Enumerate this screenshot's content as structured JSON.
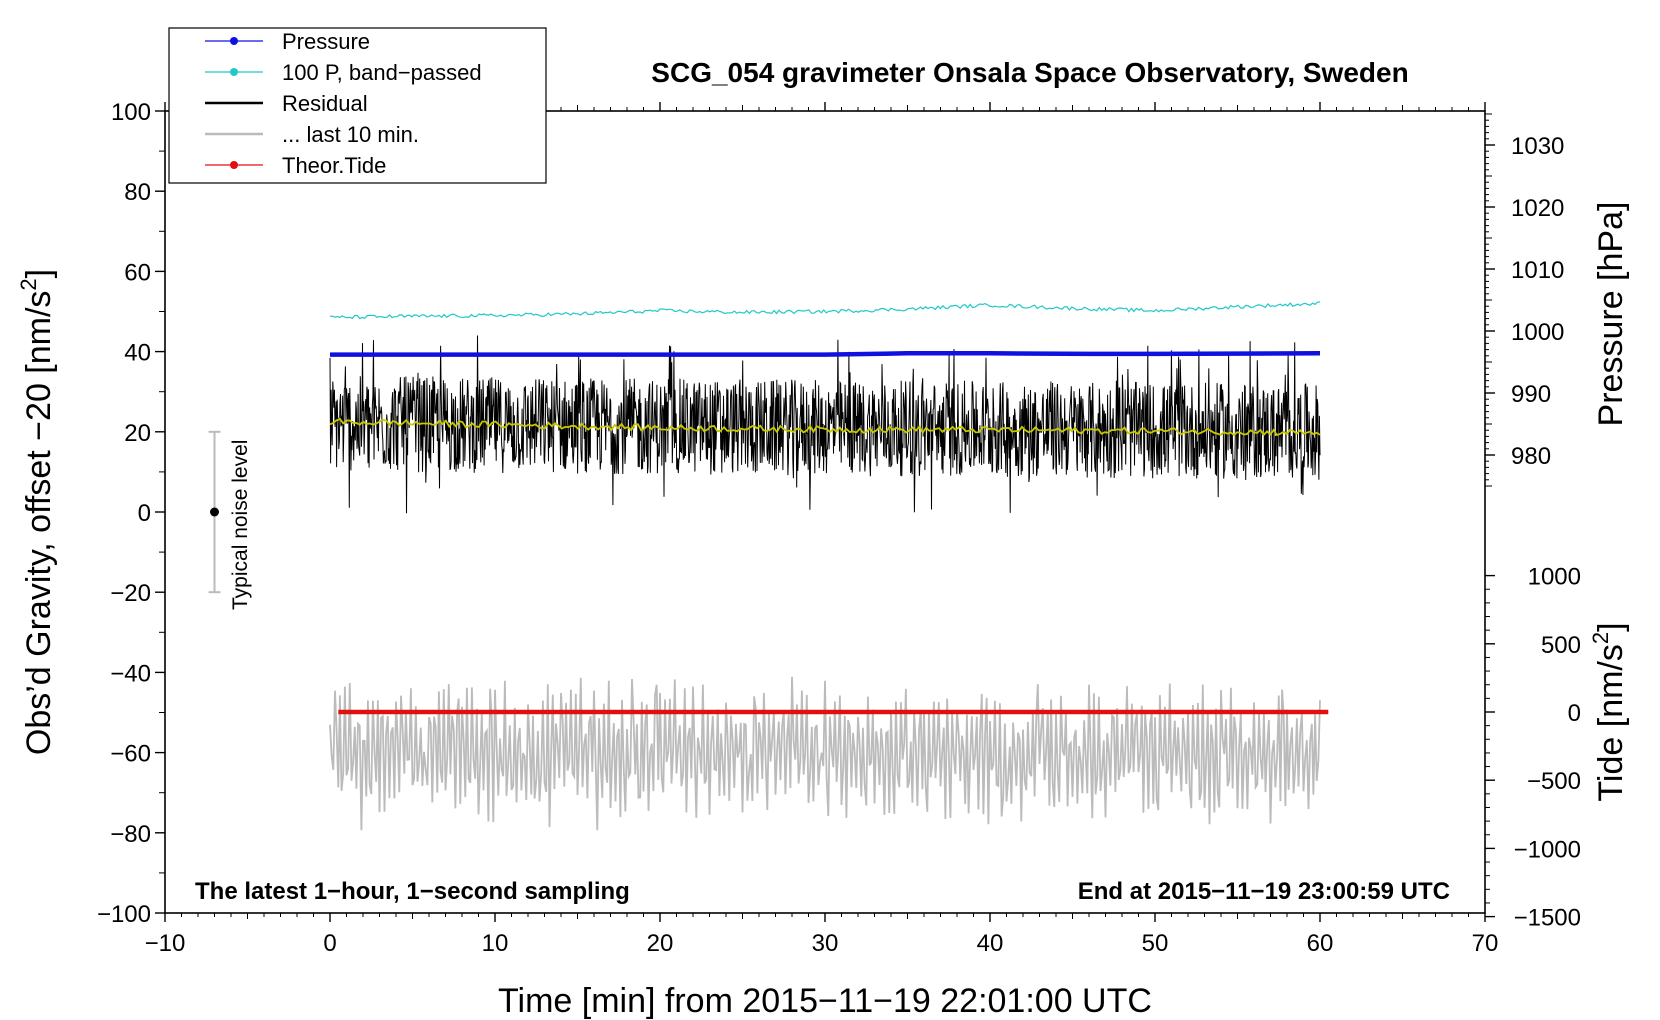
{
  "chart_data": {
    "type": "line",
    "title": "SCG_054 gravimeter Onsala Space Observatory, Sweden",
    "xlabel": "Time [min] from 2015−11−19 22:01:00 UTC",
    "ylabel_left": "Obs’d Gravity, offset −20 [nm/s",
    "ylabel_left_sup": "2",
    "ylabel_left_close": "]",
    "ylabel_right_pressure": "Pressure [hPa]",
    "ylabel_right_tide": "Tide [nm/s",
    "ylabel_right_tide_sup": "2",
    "ylabel_right_tide_close": "]",
    "annotation_left": "The latest 1−hour, 1−second sampling",
    "annotation_right": "End at 2015−11−19 23:00:59 UTC",
    "noise_label": "Typical noise level",
    "noise_bar": {
      "x": -7,
      "center": 0,
      "low": -20,
      "high": 20
    },
    "xlim": [
      -10,
      70
    ],
    "ylim": [
      -100,
      100
    ],
    "xticks": [
      "−10",
      "0",
      "10",
      "20",
      "30",
      "40",
      "50",
      "60",
      "70"
    ],
    "xtick_values": [
      -10,
      0,
      10,
      20,
      30,
      40,
      50,
      60,
      70
    ],
    "yticks": [
      "−100",
      "−80",
      "−60",
      "−40",
      "−20",
      "0",
      "20",
      "40",
      "60",
      "80",
      "100"
    ],
    "ytick_values": [
      -100,
      -80,
      -60,
      -40,
      -20,
      0,
      20,
      40,
      60,
      80,
      100
    ],
    "pressure_axis": {
      "ticks": [
        "980",
        "990",
        "1000",
        "1010",
        "1020",
        "1030"
      ],
      "tick_values": [
        980,
        990,
        1000,
        1010,
        1020,
        1030
      ],
      "range_hpa": [
        975,
        1035
      ]
    },
    "tide_axis": {
      "ticks": [
        "−1500",
        "−1000",
        "−500",
        "0",
        "500",
        "1000"
      ],
      "tick_values": [
        -1500,
        -1000,
        -500,
        0,
        500,
        1000
      ],
      "range": [
        -1500,
        1000
      ]
    },
    "legend": {
      "position": "top-left",
      "entries": [
        {
          "label": "Pressure",
          "color": "#1010e0",
          "marker": true
        },
        {
          "label": "100 P, band−passed",
          "color": "#20c8c8",
          "marker": true
        },
        {
          "label": "Residual",
          "color": "#000000",
          "marker": false
        },
        {
          "label": "... last 10 min.",
          "color": "#bbbbbb",
          "marker": false
        },
        {
          "label": "Theor.Tide",
          "color": "#e01010",
          "marker": true
        }
      ]
    },
    "series": [
      {
        "name": "Pressure",
        "axis": "pressure_hPa",
        "color": "#1010e0",
        "x": [
          0,
          10,
          20,
          30,
          35,
          40,
          46,
          50,
          60
        ],
        "y": [
          996.2,
          996.2,
          996.2,
          996.2,
          996.4,
          996.4,
          996.3,
          996.3,
          996.4
        ]
      },
      {
        "name": "100 P, band−passed",
        "axis": "gravity",
        "color": "#20c8c8",
        "x": [
          0,
          5,
          10,
          15,
          20,
          25,
          30,
          35,
          40,
          45,
          50,
          55,
          60
        ],
        "y": [
          48.5,
          48.8,
          49.0,
          49.4,
          50.2,
          49.8,
          50.0,
          50.6,
          51.6,
          50.8,
          50.2,
          51.2,
          52.0
        ]
      },
      {
        "name": "Residual",
        "axis": "gravity",
        "color": "#000000",
        "x": [
          0,
          60
        ],
        "y": [
          22,
          20
        ],
        "spread_min": -4,
        "spread_max": 49
      },
      {
        "name": "Residual, smoothed",
        "axis": "gravity",
        "color": "#c8c800",
        "x": [
          0,
          10,
          20,
          30,
          40,
          50,
          60
        ],
        "y": [
          22.5,
          21.8,
          21.0,
          20.6,
          20.5,
          20.2,
          19.8
        ]
      },
      {
        "name": "... last 10 min.",
        "axis": "gravity",
        "color": "#bbbbbb",
        "x": [
          0,
          60
        ],
        "y": [
          -60,
          -60
        ],
        "spread_min": -83,
        "spread_max": -38
      },
      {
        "name": "Theor.Tide",
        "axis": "tide_nm_s2",
        "color": "#e01010",
        "x": [
          0.5,
          60.5
        ],
        "y": [
          0,
          0
        ]
      }
    ]
  }
}
